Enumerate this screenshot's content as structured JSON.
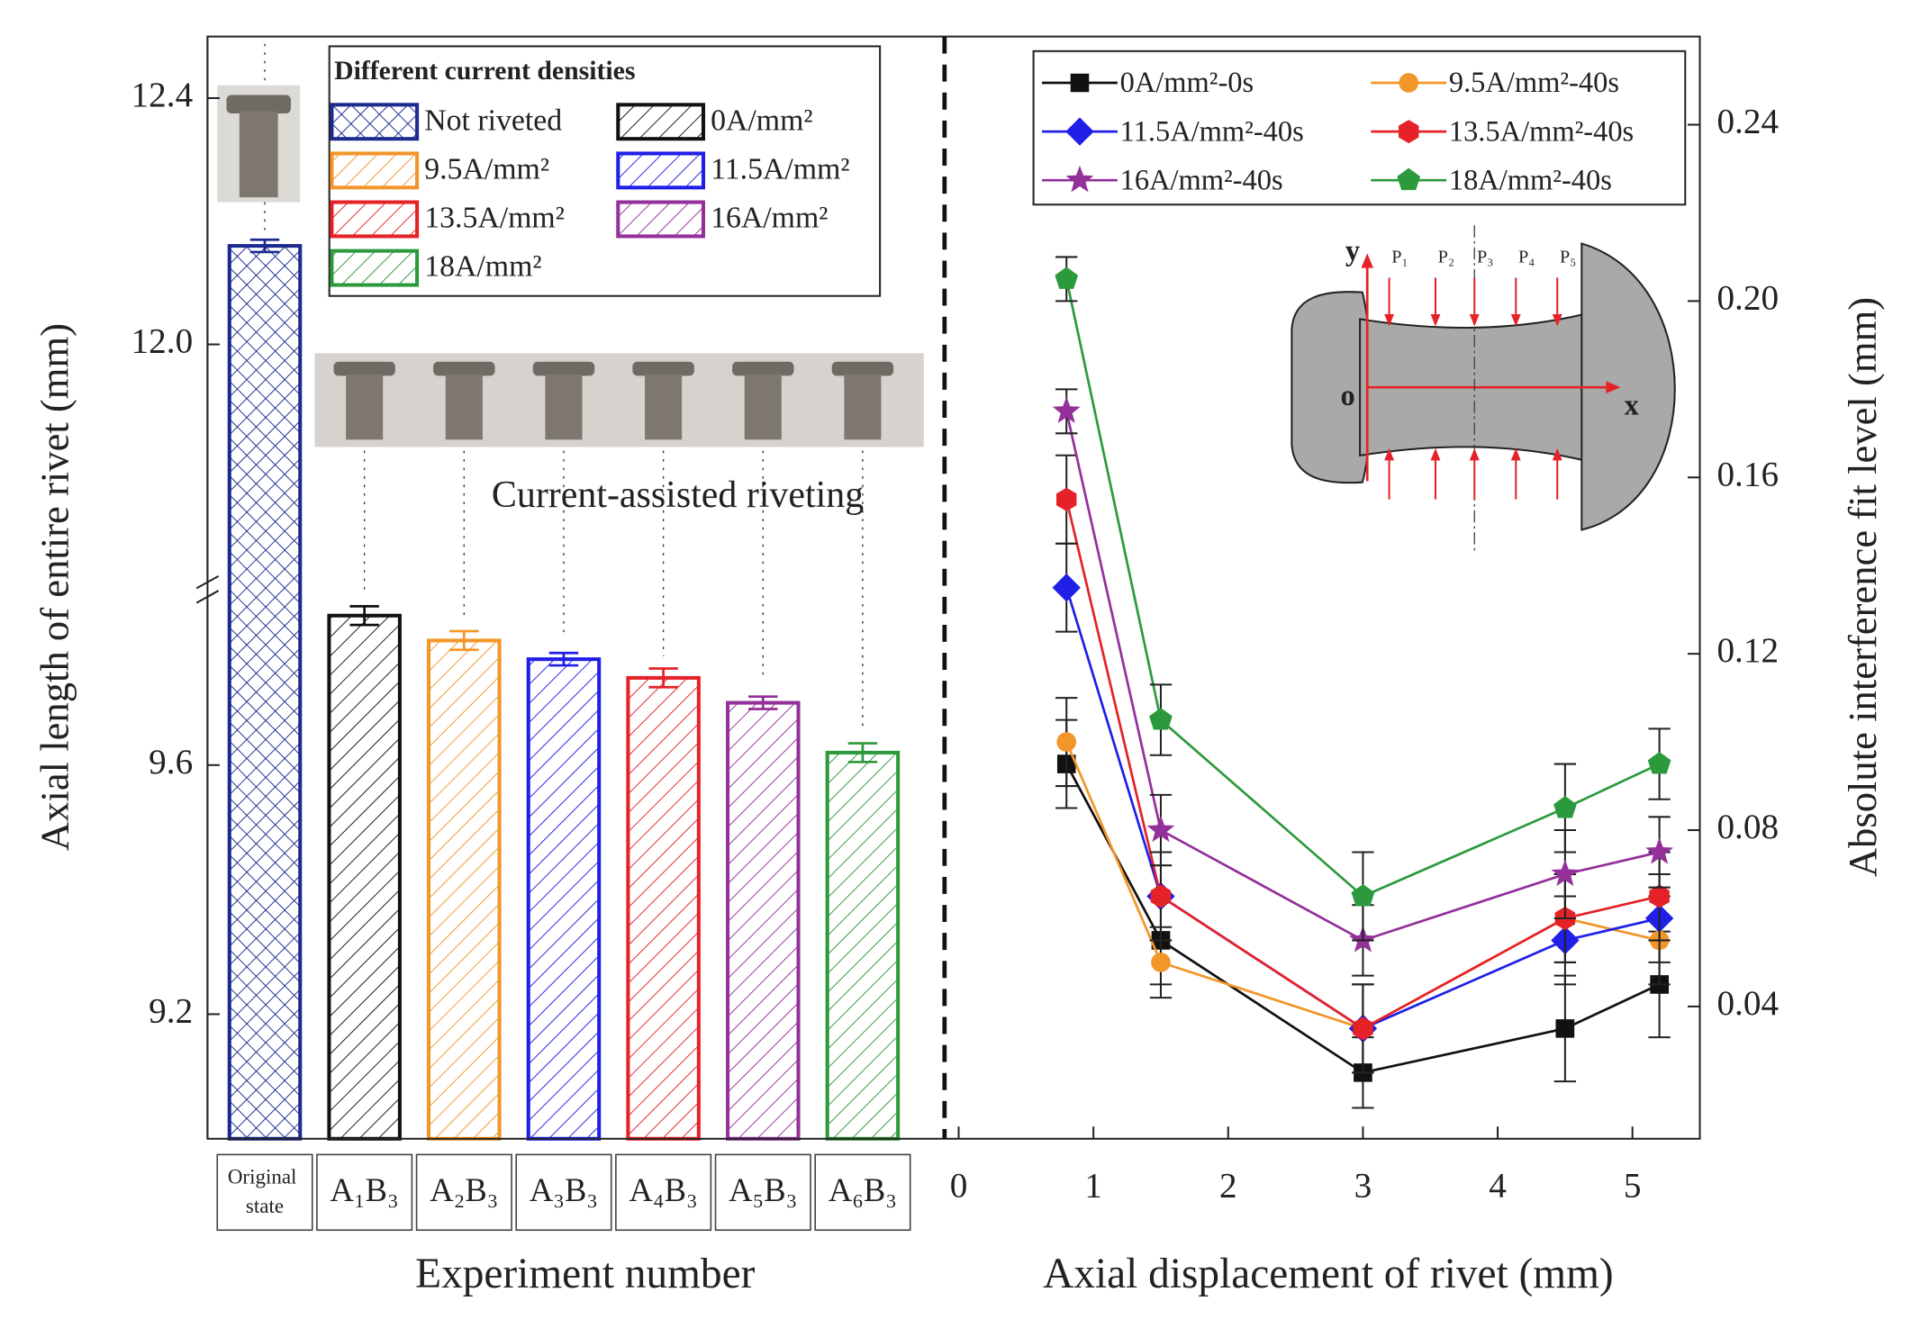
{
  "chart_data": [
    {
      "type": "bar",
      "y_label": "Axial length of entire rivet (mm)",
      "x_label": "Experiment number",
      "categories": [
        "Original state",
        "A₁B₃",
        "A₂B₃",
        "A₃B₃",
        "A₄B₃",
        "A₅B₃",
        "A₆B₃"
      ],
      "values": [
        12.16,
        9.84,
        9.8,
        9.77,
        9.74,
        9.7,
        9.62
      ],
      "errors": [
        0.01,
        0.015,
        0.015,
        0.01,
        0.015,
        0.01,
        0.015
      ],
      "colors": [
        "#1c2a8f",
        "#111111",
        "#f2962a",
        "#1f1fe8",
        "#e42228",
        "#93309a",
        "#2c9a3c"
      ],
      "hatch": [
        "cross",
        "diagonal",
        "diagonal",
        "diagonal",
        "diagonal",
        "diagonal",
        "diagonal"
      ],
      "ylim": [
        9.0,
        12.5
      ],
      "axis_break": [
        9.88,
        11.6
      ],
      "yticks": [
        9.2,
        9.6,
        {
          "value": 12,
          "label": "12.0"
        },
        12.4
      ],
      "legend": {
        "title": "Different current densities",
        "labels": [
          "Not riveted",
          "0A/mm²",
          "9.5A/mm²",
          "11.5A/mm²",
          "13.5A/mm²",
          "16A/mm²",
          "18A/mm²"
        ]
      },
      "annotation": "Current-assisted riveting"
    },
    {
      "type": "line",
      "x_label": "Axial displacement of rivet (mm)",
      "y_label": "Absolute interference fit level (mm)",
      "y_axis_side": "right",
      "x": [
        0.8,
        1.5,
        3,
        4.5,
        5.2
      ],
      "xlim": [
        -0.15,
        5.5
      ],
      "xticks": [
        0,
        1,
        2,
        3,
        4,
        5
      ],
      "ylim": [
        0.01,
        0.26
      ],
      "yticks": [
        0.04,
        0.08,
        0.12,
        0.16,
        {
          "value": 0.2,
          "label": "0.20"
        },
        0.24
      ],
      "legend": "upper right",
      "series": [
        {
          "name": "0A/mm²-0s",
          "color": "#111111",
          "marker": "square",
          "values": [
            0.095,
            0.055,
            0.025,
            0.035,
            0.045
          ],
          "errors": [
            0.01,
            0.01,
            0.008,
            0.012,
            0.012
          ]
        },
        {
          "name": "9.5A/mm²-40s",
          "color": "#f2962a",
          "marker": "circle",
          "values": [
            0.1,
            0.05,
            0.035,
            0.06,
            0.055
          ],
          "errors": [
            0.01,
            0.008,
            0.01,
            0.01,
            0.01
          ]
        },
        {
          "name": "11.5A/mm²-40s",
          "color": "#1f1fe8",
          "marker": "diamond",
          "values": [
            0.135,
            0.065,
            0.035,
            0.055,
            0.06
          ],
          "errors": [
            0.01,
            0.01,
            0.01,
            0.01,
            0.01
          ]
        },
        {
          "name": "13.5A/mm²-40s",
          "color": "#e42228",
          "marker": "hexagon",
          "values": [
            0.155,
            0.065,
            0.035,
            0.06,
            0.065
          ],
          "errors": [
            0.01,
            0.01,
            0.01,
            0.01,
            0.01
          ]
        },
        {
          "name": "16A/mm²-40s",
          "color": "#93309a",
          "marker": "star",
          "values": [
            0.175,
            0.08,
            0.055,
            0.07,
            0.075
          ],
          "errors": [
            0.005,
            0.008,
            0.008,
            0.01,
            0.008
          ]
        },
        {
          "name": "18A/mm²-40s",
          "color": "#2c9a3c",
          "marker": "pentagon",
          "values": [
            0.205,
            0.105,
            0.065,
            0.085,
            0.095
          ],
          "errors": [
            0.005,
            0.008,
            0.01,
            0.01,
            0.008
          ]
        }
      ],
      "inset_labels": [
        "y",
        "x",
        "o",
        "P₁",
        "P₂",
        "P₃",
        "P₄",
        "P₅"
      ]
    }
  ]
}
